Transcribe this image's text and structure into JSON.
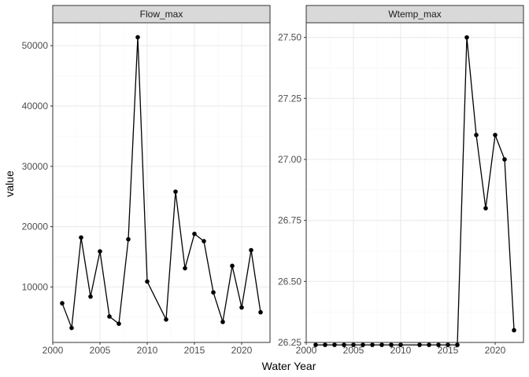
{
  "chart_data": {
    "type": "line",
    "xlabel": "Water Year",
    "ylabel": "value",
    "grid": true,
    "colors": {
      "line": "#000000",
      "point": "#000000",
      "strip_fill": "#d9d9d9",
      "strip_border": "#333333",
      "grid_major": "#ebebeb",
      "grid_minor": "#f5f5f5",
      "panel_border": "#333333"
    },
    "panels": [
      {
        "title": "Flow_max",
        "xlim": [
          2000,
          2023
        ],
        "ylim": [
          800,
          53800
        ],
        "x_ticks": [
          2000,
          2005,
          2010,
          2015,
          2020
        ],
        "x_tick_labels": [
          "2000",
          "2005",
          "2010",
          "2015",
          "2020"
        ],
        "y_ticks": [
          10000,
          20000,
          30000,
          40000,
          50000
        ],
        "y_tick_labels": [
          "10000",
          "20000",
          "30000",
          "40000",
          "50000"
        ],
        "series": [
          {
            "x": [
              2001,
              2002,
              2003,
              2004,
              2005,
              2006,
              2007,
              2008,
              2009,
              2010,
              2012,
              2013,
              2014,
              2015,
              2016,
              2017,
              2018,
              2019,
              2020,
              2021,
              2022
            ],
            "y": [
              7300,
              3200,
              18200,
              8400,
              15900,
              5100,
              3900,
              17900,
              51400,
              10900,
              4600,
              25800,
              13100,
              18800,
              17600,
              9100,
              4200,
              13500,
              6600,
              16100,
              5800
            ]
          }
        ]
      },
      {
        "title": "Wtemp_max",
        "xlim": [
          2000,
          2023
        ],
        "ylim": [
          26.25,
          27.56
        ],
        "x_ticks": [
          2000,
          2005,
          2010,
          2015,
          2020
        ],
        "x_tick_labels": [
          "2000",
          "2005",
          "2010",
          "2015",
          "2020"
        ],
        "y_ticks": [
          26.25,
          26.5,
          26.75,
          27.0,
          27.25,
          27.5
        ],
        "y_tick_labels": [
          "26.25",
          "26.50",
          "26.75",
          "27.00",
          "27.25",
          "27.50"
        ],
        "series": [
          {
            "x": [
              2001,
              2002,
              2003,
              2004,
              2005,
              2006,
              2007,
              2008,
              2009,
              2010,
              2012,
              2013,
              2014,
              2015,
              2016,
              2017,
              2018,
              2019,
              2020,
              2021,
              2022
            ],
            "y": [
              26.24,
              26.24,
              26.24,
              26.24,
              26.24,
              26.24,
              26.24,
              26.24,
              26.24,
              26.24,
              26.24,
              26.24,
              26.24,
              26.24,
              26.24,
              27.5,
              27.1,
              26.8,
              27.1,
              27.0,
              26.3
            ]
          }
        ]
      }
    ]
  }
}
